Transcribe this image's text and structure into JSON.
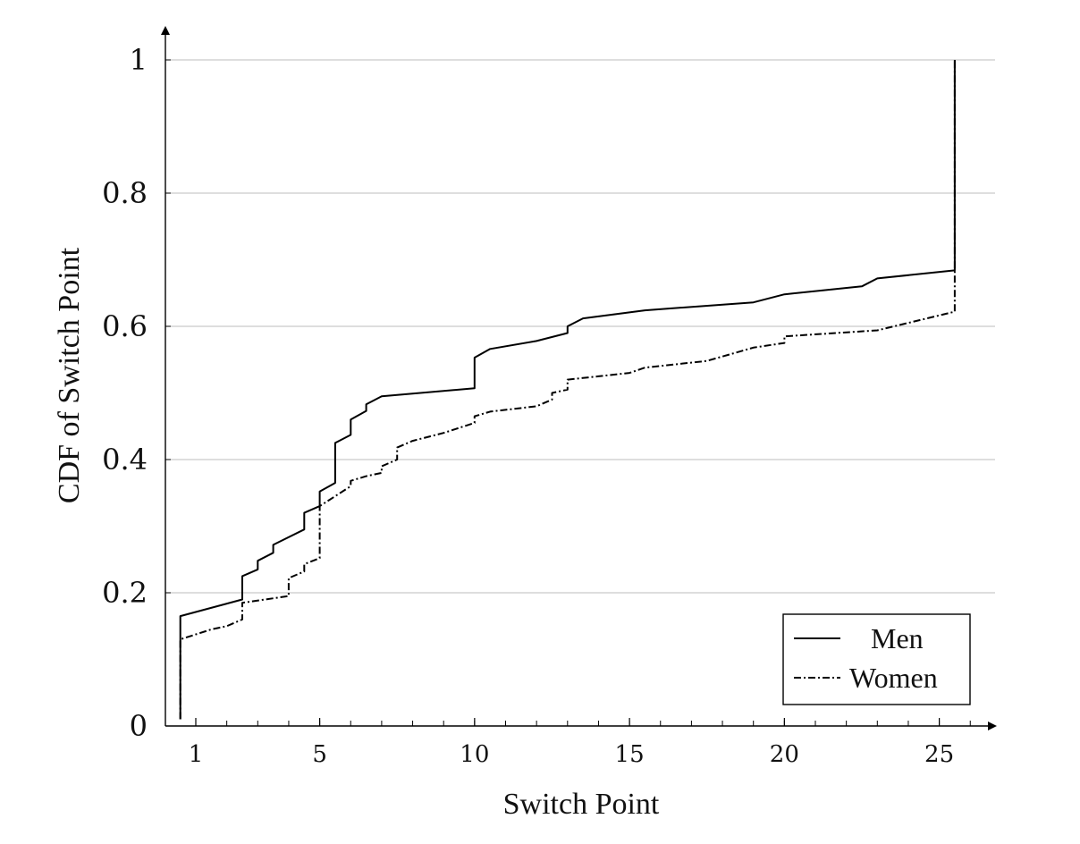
{
  "chart_data": {
    "type": "line",
    "xlabel": "Switch Point",
    "ylabel": "CDF of Switch Point",
    "xlim": [
      0.5,
      27
    ],
    "ylim": [
      0,
      1
    ],
    "x_ticks": [
      1,
      5,
      10,
      15,
      20,
      25
    ],
    "x_tick_labels": [
      "1",
      "5",
      "10",
      "15",
      "20",
      "25"
    ],
    "y_ticks": [
      0,
      0.2,
      0.4,
      0.6,
      0.8,
      1
    ],
    "y_tick_labels": [
      "0",
      "0.2",
      "0.4",
      "0.6",
      "0.8",
      "1"
    ],
    "grid": "horizontal",
    "legend_position": "bottom-right",
    "series": [
      {
        "name": "Men",
        "style": "solid",
        "color": "#000000",
        "points": [
          [
            0.5,
            0.01
          ],
          [
            0.5,
            0.165
          ],
          [
            2.5,
            0.19
          ],
          [
            2.5,
            0.225
          ],
          [
            3.0,
            0.235
          ],
          [
            3.0,
            0.248
          ],
          [
            3.5,
            0.26
          ],
          [
            3.5,
            0.272
          ],
          [
            4.5,
            0.295
          ],
          [
            4.5,
            0.32
          ],
          [
            5.0,
            0.33
          ],
          [
            5.0,
            0.352
          ],
          [
            5.5,
            0.365
          ],
          [
            5.5,
            0.425
          ],
          [
            6.0,
            0.437
          ],
          [
            6.0,
            0.46
          ],
          [
            6.5,
            0.473
          ],
          [
            6.5,
            0.483
          ],
          [
            7.0,
            0.495
          ],
          [
            10.0,
            0.507
          ],
          [
            10.0,
            0.553
          ],
          [
            10.5,
            0.566
          ],
          [
            12.0,
            0.578
          ],
          [
            13.0,
            0.59
          ],
          [
            13.0,
            0.6
          ],
          [
            13.5,
            0.612
          ],
          [
            15.5,
            0.624
          ],
          [
            19.0,
            0.636
          ],
          [
            20.0,
            0.648
          ],
          [
            22.5,
            0.66
          ],
          [
            23.0,
            0.672
          ],
          [
            25.5,
            0.684
          ],
          [
            25.5,
            1.0
          ]
        ]
      },
      {
        "name": "Women",
        "style": "dash-dot",
        "color": "#000000",
        "points": [
          [
            0.5,
            0.01
          ],
          [
            0.5,
            0.13
          ],
          [
            1.5,
            0.145
          ],
          [
            2.0,
            0.15
          ],
          [
            2.5,
            0.16
          ],
          [
            2.5,
            0.175
          ],
          [
            2.5,
            0.185
          ],
          [
            4.0,
            0.195
          ],
          [
            4.0,
            0.222
          ],
          [
            4.5,
            0.232
          ],
          [
            4.5,
            0.243
          ],
          [
            5.0,
            0.252
          ],
          [
            5.0,
            0.33
          ],
          [
            5.5,
            0.345
          ],
          [
            6.0,
            0.36
          ],
          [
            6.0,
            0.368
          ],
          [
            6.5,
            0.375
          ],
          [
            7.0,
            0.38
          ],
          [
            7.0,
            0.39
          ],
          [
            7.5,
            0.4
          ],
          [
            7.5,
            0.418
          ],
          [
            8.0,
            0.428
          ],
          [
            9.0,
            0.44
          ],
          [
            10.0,
            0.455
          ],
          [
            10.0,
            0.465
          ],
          [
            10.5,
            0.472
          ],
          [
            12.0,
            0.48
          ],
          [
            12.5,
            0.49
          ],
          [
            12.5,
            0.5
          ],
          [
            13.0,
            0.505
          ],
          [
            13.0,
            0.52
          ],
          [
            14.0,
            0.525
          ],
          [
            15.0,
            0.53
          ],
          [
            15.5,
            0.538
          ],
          [
            17.5,
            0.548
          ],
          [
            19.0,
            0.568
          ],
          [
            20.0,
            0.575
          ],
          [
            20.0,
            0.585
          ],
          [
            23.0,
            0.594
          ],
          [
            25.5,
            0.622
          ],
          [
            25.5,
            1.0
          ]
        ]
      }
    ]
  }
}
